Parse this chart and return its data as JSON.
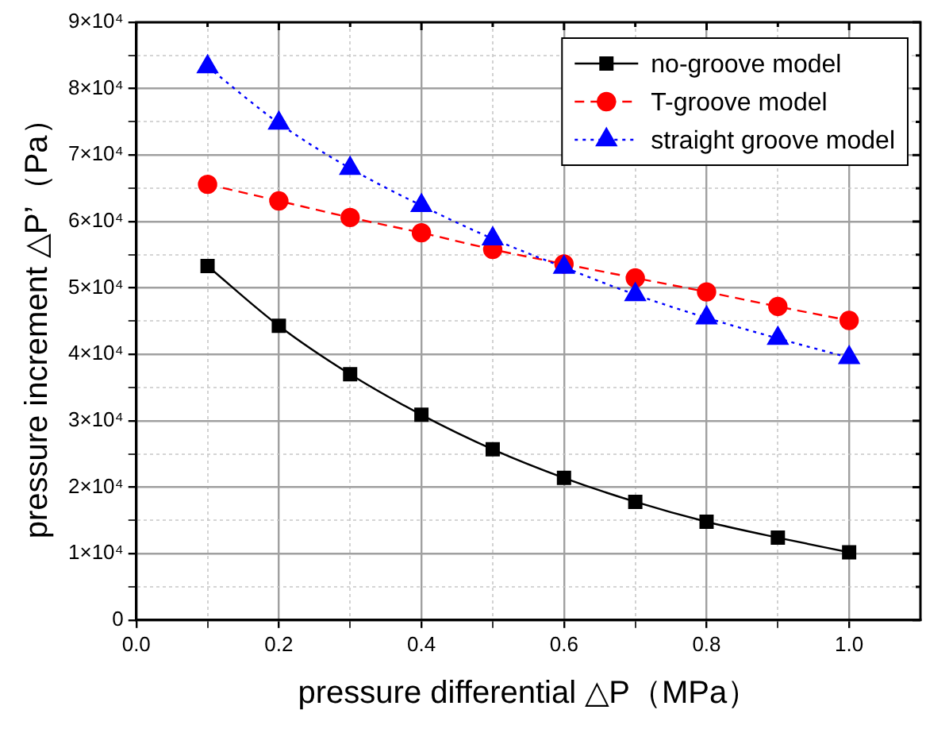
{
  "chart_data": {
    "type": "line",
    "xlabel": "pressure differential △P（MPa）",
    "ylabel": "pressure increment △P’（Pa）",
    "x": [
      0.1,
      0.2,
      0.3,
      0.4,
      0.5,
      0.6,
      0.7,
      0.8,
      0.9,
      1.0
    ],
    "series": [
      {
        "name": "no-groove model",
        "color": "#000000",
        "marker": "square",
        "line_style": "solid",
        "values": [
          53300,
          44300,
          37000,
          30900,
          25700,
          21400,
          17800,
          14800,
          12400,
          10200
        ]
      },
      {
        "name": "T-groove model",
        "color": "#ff0000",
        "marker": "circle",
        "line_style": "dashed",
        "values": [
          65600,
          63100,
          60600,
          58300,
          55800,
          53600,
          51500,
          49400,
          47200,
          45100
        ]
      },
      {
        "name": "straight groove model",
        "color": "#0000ff",
        "marker": "triangle",
        "line_style": "dotted",
        "values": [
          83300,
          74800,
          68000,
          62400,
          57400,
          53100,
          49000,
          45500,
          42400,
          39500
        ]
      }
    ],
    "xlim": [
      0,
      1.1
    ],
    "xticks": [
      {
        "value": 0,
        "label": "0.0"
      },
      {
        "value": 0.1,
        "label": null
      },
      {
        "value": 0.2,
        "label": "0.2"
      },
      {
        "value": 0.3,
        "label": null
      },
      {
        "value": 0.4,
        "label": "0.4"
      },
      {
        "value": 0.5,
        "label": null
      },
      {
        "value": 0.6,
        "label": "0.6"
      },
      {
        "value": 0.7,
        "label": null
      },
      {
        "value": 0.8,
        "label": "0.8"
      },
      {
        "value": 0.9,
        "label": null
      },
      {
        "value": 1.0,
        "label": "1.0"
      }
    ],
    "ylim": [
      0,
      90000
    ],
    "yticks": [
      0,
      {
        "value": 5000,
        "label": null
      },
      {
        "value": 10000,
        "label": "1×10⁴"
      },
      {
        "value": 15000,
        "label": null
      },
      {
        "value": 20000,
        "label": "2×10⁴"
      },
      {
        "value": 25000,
        "label": null
      },
      {
        "value": 30000,
        "label": "3×10⁴"
      },
      {
        "value": 35000,
        "label": null
      },
      {
        "value": 40000,
        "label": "4×10⁴"
      },
      {
        "value": 45000,
        "label": null
      },
      {
        "value": 50000,
        "label": "5×10⁴"
      },
      {
        "value": 55000,
        "label": null
      },
      {
        "value": 60000,
        "label": "6×10⁴"
      },
      {
        "value": 65000,
        "label": null
      },
      {
        "value": 70000,
        "label": "7×10⁴"
      },
      {
        "value": 75000,
        "label": null
      },
      {
        "value": 80000,
        "label": "8×10⁴"
      },
      {
        "value": 85000,
        "label": null
      },
      {
        "value": 90000,
        "label": "9×10⁴"
      }
    ],
    "grid": true,
    "legend": "top right"
  }
}
